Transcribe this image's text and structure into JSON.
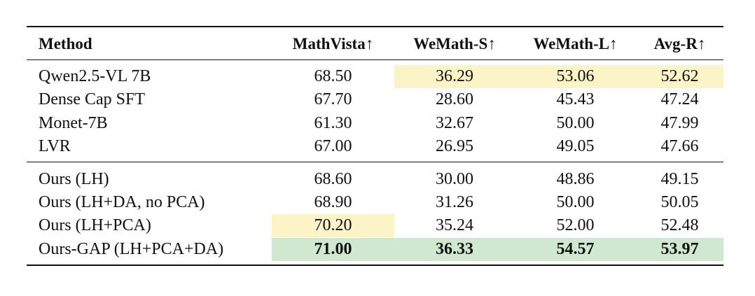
{
  "table": {
    "header": [
      "Method",
      "MathVista↑",
      "WeMath-S↑",
      "WeMath-L↑",
      "Avg-R↑"
    ],
    "rows": [
      [
        "Qwen2.5-VL 7B",
        "68.50",
        "36.29",
        "53.06",
        "52.62"
      ],
      [
        "Dense Cap SFT",
        "67.70",
        "28.60",
        "45.43",
        "47.24"
      ],
      [
        "Monet-7B",
        "61.30",
        "32.67",
        "50.00",
        "47.99"
      ],
      [
        "LVR",
        "67.00",
        "26.95",
        "49.05",
        "47.66"
      ],
      [
        "Ours (LH)",
        "68.60",
        "30.00",
        "48.86",
        "49.15"
      ],
      [
        "Ours (LH+DA, no PCA)",
        "68.90",
        "31.26",
        "50.00",
        "50.05"
      ],
      [
        "Ours (LH+PCA)",
        "70.20",
        "35.24",
        "52.00",
        "52.48"
      ],
      [
        "Ours-GAP (LH+PCA+DA)",
        "71.00",
        "36.33",
        "54.57",
        "53.97"
      ]
    ]
  }
}
